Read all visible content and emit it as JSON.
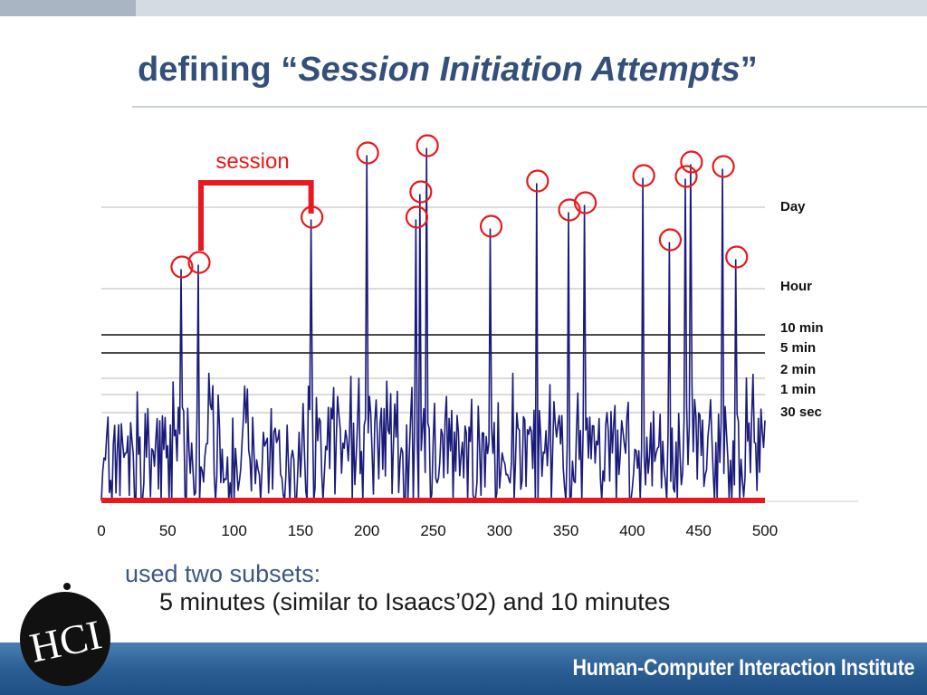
{
  "header": {
    "title_prefix": "defining “",
    "title_italic": "Session Initiation Attempts",
    "title_suffix": "”"
  },
  "chart_data": {
    "type": "line",
    "series_color": "#1a1a7a",
    "highlight_color": "#e8191c",
    "annotation": "session",
    "xlim": [
      0,
      500
    ],
    "x_ticks": [
      "0",
      "50",
      "100",
      "150",
      "200",
      "250",
      "300",
      "350",
      "400",
      "450",
      "500"
    ],
    "threshold_lines": [
      {
        "label": "Day",
        "style": "gray"
      },
      {
        "label": "Hour",
        "style": "gray"
      },
      {
        "label": "10 min",
        "style": "black"
      },
      {
        "label": "5 min",
        "style": "black"
      },
      {
        "label": "2 min",
        "style": "gray"
      },
      {
        "label": "1 min",
        "style": "gray"
      },
      {
        "label": "30 sec",
        "style": "gray"
      }
    ],
    "peaks_x": [
      60,
      73,
      158,
      200,
      237,
      240,
      245,
      293,
      328,
      352,
      364,
      408,
      428,
      440,
      444,
      468,
      478
    ],
    "session_span_x": [
      73,
      158
    ]
  },
  "bullets": {
    "line1": "used two subsets:",
    "line2": "5 minutes (similar to Isaacs’02) and 10 minutes"
  },
  "footer": {
    "institute": "Human-Computer Interaction Institute",
    "logo_text": "HCI"
  }
}
